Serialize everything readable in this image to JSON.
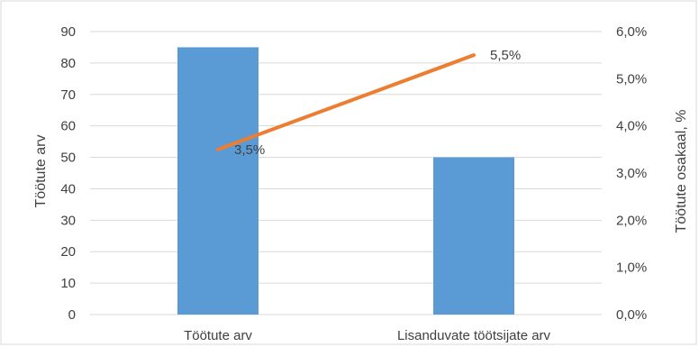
{
  "chart_data": {
    "type": "bar",
    "categories": [
      "Töötute arv",
      "Lisanduvate töötsijate arv"
    ],
    "series": [
      {
        "type": "bar",
        "axis": "left",
        "values": [
          85,
          50
        ],
        "color": "#5B9BD5"
      },
      {
        "type": "line",
        "axis": "right",
        "values": [
          3.5,
          5.5
        ],
        "labels": [
          "3,5%",
          "5,5%"
        ],
        "color": "#ED7D31"
      }
    ],
    "ylabel": "Töötute arv",
    "y2label": "Töötute osakaal, %",
    "ylim": [
      0,
      90
    ],
    "y2lim": [
      0,
      6
    ],
    "yticks": [
      "0",
      "10",
      "20",
      "30",
      "40",
      "50",
      "60",
      "70",
      "80",
      "90"
    ],
    "y2ticks": [
      "0,0%",
      "1,0%",
      "2,0%",
      "3,0%",
      "4,0%",
      "5,0%",
      "6,0%"
    ],
    "grid": true,
    "gridColor": "#d9d9d9",
    "textColor": "#404040"
  }
}
